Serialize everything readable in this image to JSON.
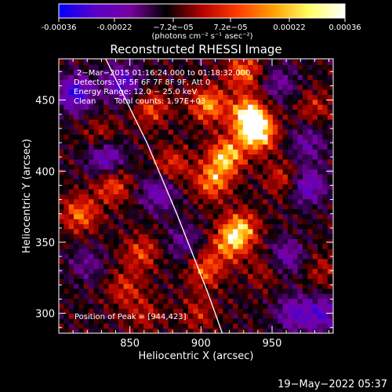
{
  "chart_data": {
    "type": "heatmap",
    "title": "Reconstructed RHESSI Image",
    "xlabel": "Heliocentric X (arcsec)",
    "ylabel": "Heliocentric Y (arcsec)",
    "xlim": [
      800,
      993
    ],
    "ylim": [
      286,
      479
    ],
    "x_ticks": [
      850,
      900,
      950
    ],
    "y_ticks": [
      300,
      350,
      400,
      450
    ],
    "colorbar": {
      "ticks": [
        "-0.00036",
        "-0.00022",
        "−7.2e−05",
        "7.2e−05",
        "0.00022",
        "0.00036"
      ],
      "tick_values": [
        -0.00036,
        -0.00022,
        -7.2e-05,
        7.2e-05,
        0.00022,
        0.00036
      ],
      "range": [
        -0.00036,
        0.00036
      ],
      "unit_label": "(photons cm⁻² s⁻¹ asec⁻²)",
      "colors": [
        "#0000ff",
        "#5a00c8",
        "#7800a0",
        "#000000",
        "#b40000",
        "#ff3c00",
        "#ffa000",
        "#ffff64",
        "#ffffff"
      ]
    },
    "annotations": [
      "2−Mar−2015 01:16:24.000 to 01:18:32.000",
      "Detectors: 3F 5F 6F 7F 8F 9F, Att 0",
      "Energy Range: 12.0 − 25.0 keV",
      "Clean",
      "Total counts: 1.97E+03",
      "Position of Peak = [944,423]"
    ],
    "peak": {
      "x": 944,
      "y": 423
    },
    "limb": [
      {
        "x": 833,
        "y": 479
      },
      {
        "x": 862,
        "y": 420
      },
      {
        "x": 883,
        "y": 370
      },
      {
        "x": 905,
        "y": 314
      },
      {
        "x": 915,
        "y": 286
      }
    ],
    "hotspots": [
      {
        "x": 940,
        "y": 427,
        "v": 0.00036
      },
      {
        "x": 933,
        "y": 440,
        "v": 0.00033
      },
      {
        "x": 918,
        "y": 411,
        "v": 0.0003
      },
      {
        "x": 905,
        "y": 447,
        "v": 0.00026
      },
      {
        "x": 930,
        "y": 470,
        "v": 0.00022
      },
      {
        "x": 908,
        "y": 393,
        "v": 0.00024
      },
      {
        "x": 928,
        "y": 360,
        "v": 0.00025
      },
      {
        "x": 920,
        "y": 349,
        "v": 0.00022
      },
      {
        "x": 903,
        "y": 331,
        "v": 0.0002
      },
      {
        "x": 865,
        "y": 445,
        "v": 0.00018
      },
      {
        "x": 838,
        "y": 390,
        "v": 0.00019
      },
      {
        "x": 815,
        "y": 370,
        "v": 0.00022
      },
      {
        "x": 858,
        "y": 343,
        "v": 0.00017
      },
      {
        "x": 880,
        "y": 405,
        "v": 0.00016
      },
      {
        "x": 846,
        "y": 318,
        "v": 0.00014
      },
      {
        "x": 898,
        "y": 300,
        "v": 0.00012
      },
      {
        "x": 958,
        "y": 395,
        "v": 0.00015
      },
      {
        "x": 980,
        "y": 445,
        "v": 0.00012
      },
      {
        "x": 985,
        "y": 330,
        "v": 0.0001
      },
      {
        "x": 830,
        "y": 425,
        "v": 0.00012
      },
      {
        "x": 945,
        "y": 330,
        "v": 0.0001
      },
      {
        "x": 860,
        "y": 300,
        "v": 0.00011
      }
    ],
    "coldspots": [
      {
        "x": 812,
        "y": 455,
        "v": -0.0003
      },
      {
        "x": 845,
        "y": 462,
        "v": -0.00026
      },
      {
        "x": 833,
        "y": 410,
        "v": -0.00024
      },
      {
        "x": 870,
        "y": 385,
        "v": -0.0002
      },
      {
        "x": 975,
        "y": 390,
        "v": -0.00024
      },
      {
        "x": 985,
        "y": 300,
        "v": -0.00022
      },
      {
        "x": 960,
        "y": 340,
        "v": -0.00018
      },
      {
        "x": 965,
        "y": 300,
        "v": -0.0002
      },
      {
        "x": 975,
        "y": 420,
        "v": -0.00016
      },
      {
        "x": 955,
        "y": 462,
        "v": -0.00014
      },
      {
        "x": 888,
        "y": 350,
        "v": -0.00014
      },
      {
        "x": 820,
        "y": 335,
        "v": -0.00012
      }
    ]
  },
  "footer": {
    "date": "19−May−2022 05:37"
  }
}
